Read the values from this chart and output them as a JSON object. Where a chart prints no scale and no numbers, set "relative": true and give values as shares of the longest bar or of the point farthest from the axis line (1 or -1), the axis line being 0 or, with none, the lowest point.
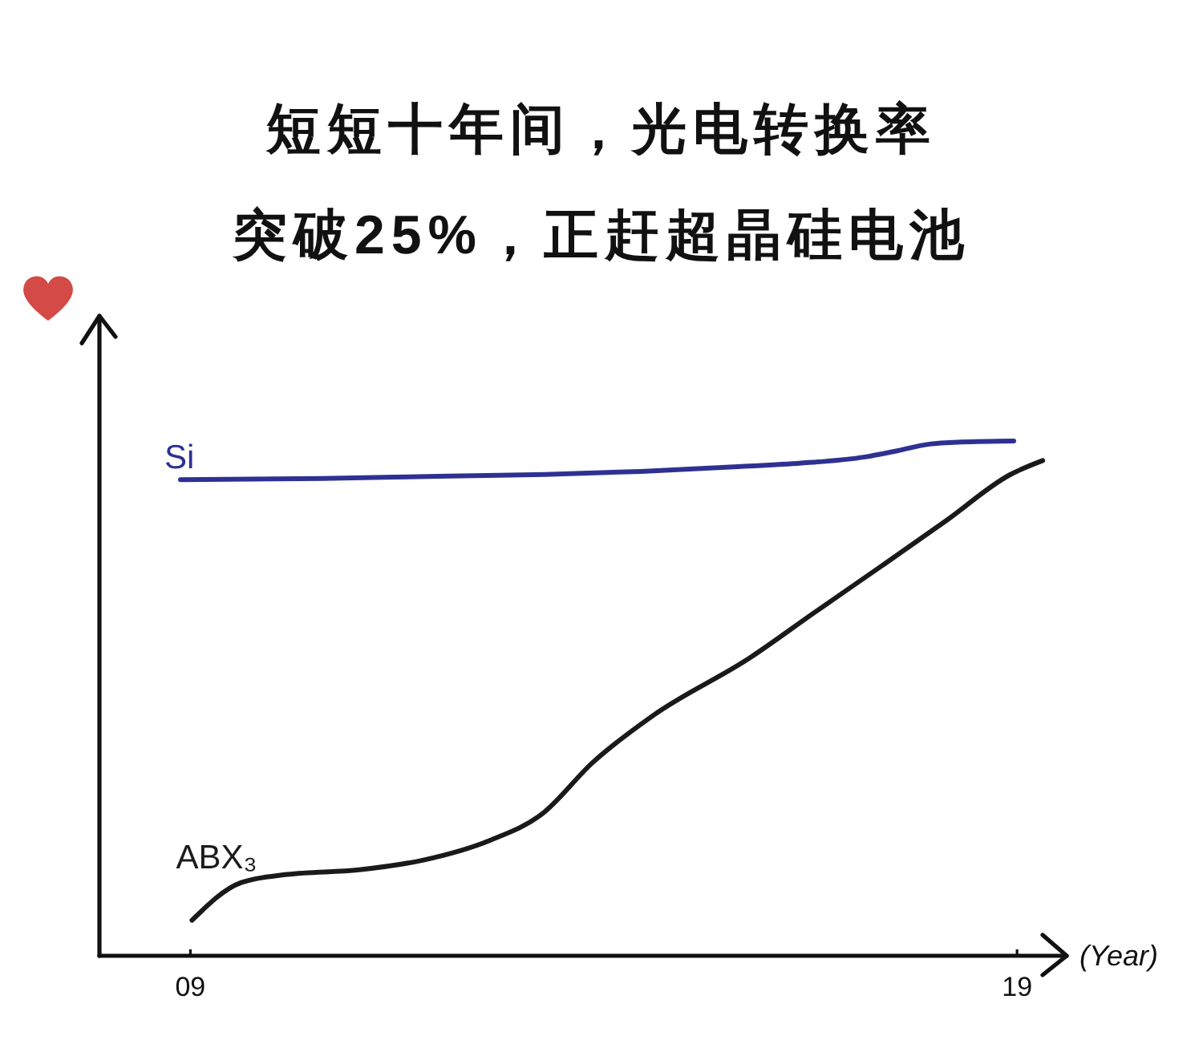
{
  "chart_data": {
    "type": "line",
    "title": "短短十年间，光电转换率突破25%，正赶超晶硅电池",
    "xlabel": "(Year)",
    "relative": true,
    "xlim": [
      7.9,
      19.6
    ],
    "xticks": [
      {
        "value": 9,
        "label": "09"
      },
      {
        "value": 19,
        "label": "19"
      }
    ],
    "series": [
      {
        "name": "Si",
        "color": "#2e3192",
        "x": [
          8.88,
          10.59,
          12.13,
          13.29,
          14.45,
          15.62,
          16.39,
          17.16,
          17.55,
          17.94,
          18.32,
          18.96
        ],
        "values": [
          0.925,
          0.927,
          0.932,
          0.935,
          0.941,
          0.95,
          0.957,
          0.969,
          0.981,
          0.994,
          0.998,
          1.0
        ]
      },
      {
        "name": "ABX₃",
        "color": "#1a1a1a",
        "x": [
          9.02,
          9.61,
          10.17,
          11.04,
          11.82,
          12.62,
          13.25,
          13.87,
          14.59,
          15.77,
          16.56,
          17.35,
          18.14,
          18.92,
          19.31
        ],
        "values": [
          0.069,
          0.142,
          0.158,
          0.167,
          0.186,
          0.224,
          0.275,
          0.376,
          0.466,
          0.579,
          0.668,
          0.756,
          0.845,
          0.935,
          0.962
        ]
      }
    ]
  }
}
